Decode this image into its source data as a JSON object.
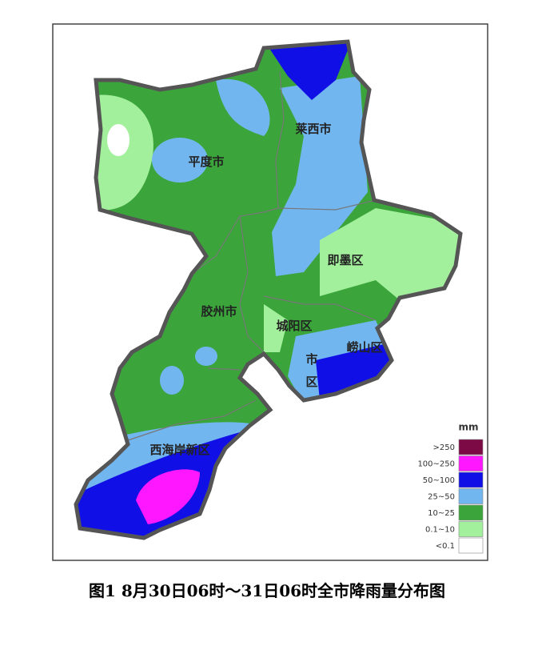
{
  "map": {
    "regions": [
      "莱西市",
      "平度市",
      "即墨区",
      "胶州市",
      "城阳区",
      "崂山区",
      "市",
      "区",
      "西海岸新区"
    ],
    "legend": {
      "title": "mm",
      "items": [
        {
          "label": ">250",
          "color": "#7b0a45"
        },
        {
          "label": "100~250",
          "color": "#ff18ff"
        },
        {
          "label": "50~100",
          "color": "#1010e6"
        },
        {
          "label": "25~50",
          "color": "#72b6f0"
        },
        {
          "label": "10~25",
          "color": "#3ba53b"
        },
        {
          "label": "0.1~10",
          "color": "#a3f09c"
        },
        {
          "label": "<0.1",
          "color": "#ffffff"
        }
      ]
    }
  },
  "caption": "图1   8月30日06时～31日06时全市降雨量分布图"
}
